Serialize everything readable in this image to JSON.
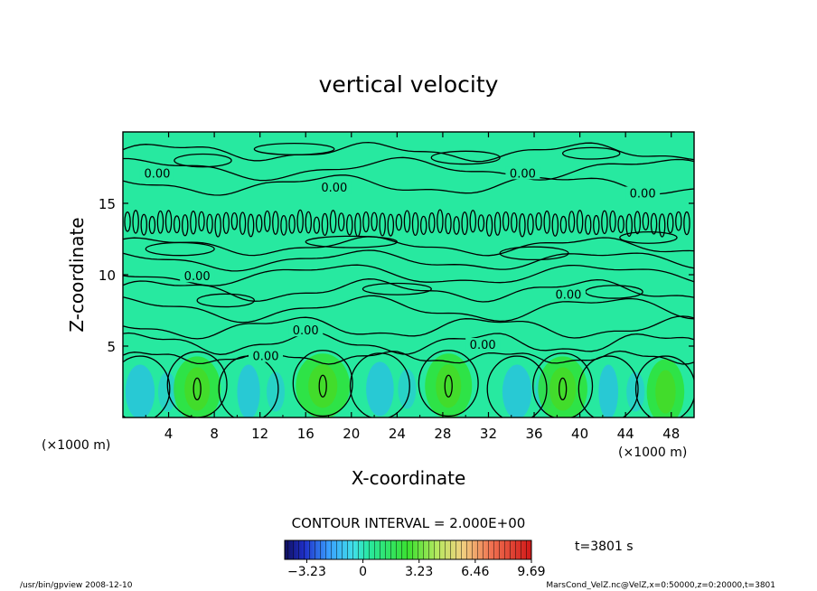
{
  "chart_data": {
    "type": "heatmap",
    "title": "vertical velocity",
    "xlabel": "X-coordinate",
    "ylabel": "Z-coordinate",
    "x_unit_label": "(×1000 m)",
    "x_unit_label_right": "(×1000 m)",
    "xlim": [
      0,
      50
    ],
    "ylim": [
      0,
      20
    ],
    "x_ticks": [
      4,
      8,
      12,
      16,
      20,
      24,
      28,
      32,
      36,
      40,
      44,
      48
    ],
    "y_ticks": [
      5,
      10,
      15
    ],
    "contour_interval_text": "CONTOUR INTERVAL = 2.000E+00",
    "contour_label": "0.00",
    "contour_label_positions": [
      {
        "x": 3.0,
        "z": 17.0
      },
      {
        "x": 18.5,
        "z": 16.0
      },
      {
        "x": 35.0,
        "z": 17.0
      },
      {
        "x": 45.5,
        "z": 15.6
      },
      {
        "x": 6.5,
        "z": 9.8
      },
      {
        "x": 39.0,
        "z": 8.5
      },
      {
        "x": 16.0,
        "z": 6.0
      },
      {
        "x": 31.5,
        "z": 5.0
      },
      {
        "x": 12.5,
        "z": 4.2
      }
    ],
    "colorbar": {
      "min": -4.5,
      "max": 9.69,
      "tick_values": [
        -3.23,
        0,
        3.23,
        6.46,
        9.69
      ],
      "tick_labels": [
        "−3.23",
        "0",
        "3.23",
        "6.46",
        "9.69"
      ]
    },
    "updraft_cores": [
      {
        "x": 6.5,
        "z": 2.0,
        "amp": 1.0
      },
      {
        "x": 17.5,
        "z": 2.2,
        "amp": 1.15
      },
      {
        "x": 28.5,
        "z": 2.2,
        "amp": 1.0
      },
      {
        "x": 38.5,
        "z": 2.0,
        "amp": 1.05
      },
      {
        "x": 47.5,
        "z": 1.8,
        "amp": 0.8
      }
    ],
    "downdraft_cores": [
      {
        "x": 1.5,
        "z": 1.8,
        "amp": 0.9
      },
      {
        "x": 11.0,
        "z": 1.8,
        "amp": 0.7
      },
      {
        "x": 22.5,
        "z": 2.0,
        "amp": 0.85
      },
      {
        "x": 34.5,
        "z": 1.8,
        "amp": 0.9
      },
      {
        "x": 42.5,
        "z": 1.8,
        "amp": 0.6
      }
    ],
    "colors": {
      "background_field": "#27e9a0",
      "updraft": "#32e02a",
      "downdraft": "#2aaeff",
      "contour_line": "#000000"
    }
  },
  "time_text": "t=3801 s",
  "footer_left": "/usr/bin/gpview   2008-12-10",
  "footer_right": "MarsCond_VelZ.nc@VelZ,x=0:50000,z=0:20000,t=3801"
}
